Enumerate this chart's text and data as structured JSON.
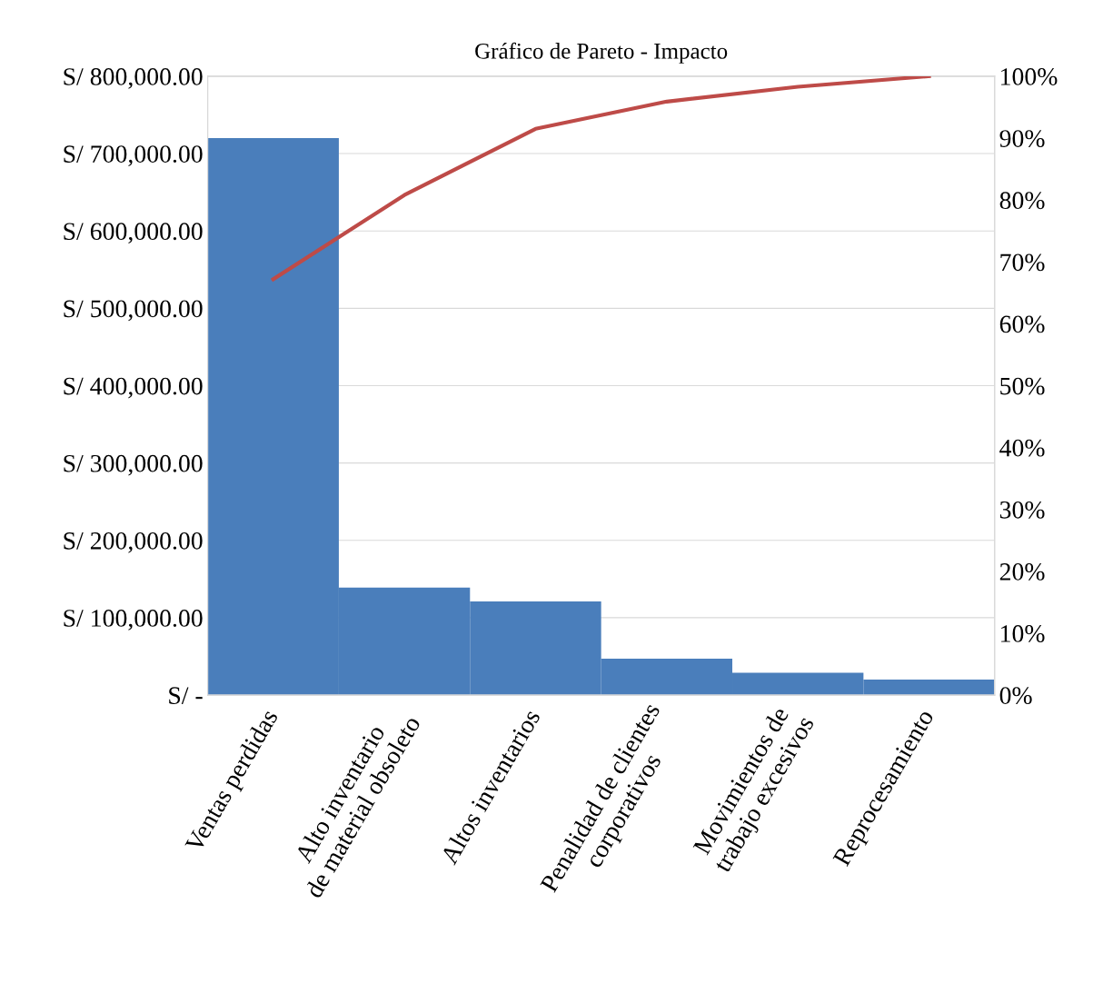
{
  "chart_data": {
    "type": "bar",
    "title": "Gráfico de Pareto - Impacto",
    "categories": [
      "Ventas perdidas",
      "Alto inventario\nde material obsoleto",
      "Altos inventarios",
      "Penalidad de clientes\ncorporativos",
      "Movimientos de\ntrabajo excesivos",
      "Reprocesamiento"
    ],
    "series": [
      {
        "color": "#4a7ebb",
        "values": [
          720000,
          139000,
          121000,
          47000,
          29000,
          20000
        ]
      },
      {
        "type": "line",
        "axis": "y2",
        "color": "#be4b48",
        "values": [
          67.2,
          80.8,
          91.5,
          95.9,
          98.3,
          100
        ]
      }
    ],
    "ylim": [
      0,
      800000
    ],
    "yticks": [
      {
        "value": 0,
        "label": "S/ -"
      },
      {
        "value": 100000,
        "label": "S/ 100,000.00"
      },
      {
        "value": 200000,
        "label": "S/ 200,000.00"
      },
      {
        "value": 300000,
        "label": "S/ 300,000.00"
      },
      {
        "value": 400000,
        "label": "S/ 400,000.00"
      },
      {
        "value": 500000,
        "label": "S/ 500,000.00"
      },
      {
        "value": 600000,
        "label": "S/ 600,000.00"
      },
      {
        "value": 700000,
        "label": "S/ 700,000.00"
      },
      {
        "value": 800000,
        "label": "S/ 800,000.00"
      }
    ],
    "y2lim": [
      0,
      100
    ],
    "y2ticks": [
      {
        "value": 0,
        "label": "0%"
      },
      {
        "value": 10,
        "label": "10%"
      },
      {
        "value": 20,
        "label": "20%"
      },
      {
        "value": 30,
        "label": "30%"
      },
      {
        "value": 40,
        "label": "40%"
      },
      {
        "value": 50,
        "label": "50%"
      },
      {
        "value": 60,
        "label": "60%"
      },
      {
        "value": 70,
        "label": "70%"
      },
      {
        "value": 80,
        "label": "80%"
      },
      {
        "value": 90,
        "label": "90%"
      },
      {
        "value": 100,
        "label": "100%"
      }
    ],
    "grid": "y",
    "marker": "none",
    "line_style": "solid"
  }
}
